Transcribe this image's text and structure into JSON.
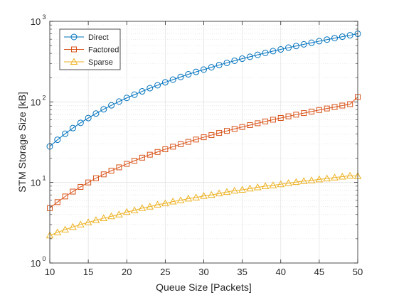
{
  "chart_data": {
    "type": "line",
    "title": "",
    "xlabel": "Queue Size [Packets]",
    "ylabel": "STM Storage Size [kB]",
    "xlim": [
      10,
      50
    ],
    "ylim": [
      1,
      1000
    ],
    "yscale": "log",
    "grid": true,
    "minor_grid": true,
    "legend_position": "top-left",
    "x_ticks": [
      "10",
      "15",
      "20",
      "25",
      "30",
      "35",
      "40",
      "45",
      "50"
    ],
    "y_ticks": [
      {
        "base": "10",
        "exp": "0"
      },
      {
        "base": "10",
        "exp": "1"
      },
      {
        "base": "10",
        "exp": "2"
      },
      {
        "base": "10",
        "exp": "3"
      }
    ],
    "x": [
      10,
      11,
      12,
      13,
      14,
      15,
      16,
      17,
      18,
      19,
      20,
      21,
      22,
      23,
      24,
      25,
      26,
      27,
      28,
      29,
      30,
      31,
      32,
      33,
      34,
      35,
      36,
      37,
      38,
      39,
      40,
      41,
      42,
      43,
      44,
      45,
      46,
      47,
      48,
      49,
      50
    ],
    "series": [
      {
        "name": "Direct",
        "color": "#0072BD",
        "marker": "circle",
        "values": [
          28,
          33.9,
          40.3,
          47.3,
          54.9,
          63,
          71.7,
          81,
          90.7,
          101,
          112,
          123,
          135,
          148,
          161,
          175,
          189,
          204,
          220,
          236,
          252,
          269,
          287,
          305,
          324,
          344,
          363,
          384,
          405,
          427,
          448,
          471,
          494,
          518,
          542,
          567,
          593,
          619,
          645,
          672,
          700
        ]
      },
      {
        "name": "Factored",
        "color": "#D95319",
        "marker": "square",
        "values": [
          4.8,
          5.7,
          6.7,
          7.7,
          8.8,
          10,
          11.3,
          12.6,
          14,
          15.4,
          17,
          18.6,
          20.3,
          22.1,
          23.9,
          25.8,
          27.8,
          29.8,
          31.9,
          34.1,
          36.4,
          38.7,
          41.1,
          43.6,
          46.2,
          48.8,
          51.5,
          54.3,
          57.2,
          60.1,
          63.1,
          66.2,
          69.4,
          72.6,
          75.9,
          79.3,
          82.8,
          86.3,
          90,
          93.7,
          115
        ]
      },
      {
        "name": "Sparse",
        "color": "#EDB120",
        "marker": "triangle",
        "values": [
          2.2,
          2.4,
          2.6,
          2.8,
          3.0,
          3.2,
          3.4,
          3.6,
          3.8,
          4.0,
          4.3,
          4.5,
          4.8,
          5.0,
          5.3,
          5.5,
          5.8,
          6.0,
          6.3,
          6.5,
          6.8,
          7.0,
          7.3,
          7.6,
          7.9,
          8.1,
          8.4,
          8.7,
          9.0,
          9.2,
          9.5,
          9.8,
          10.1,
          10.4,
          10.6,
          10.9,
          11.2,
          11.5,
          11.8,
          12.1,
          12.0
        ]
      }
    ]
  }
}
